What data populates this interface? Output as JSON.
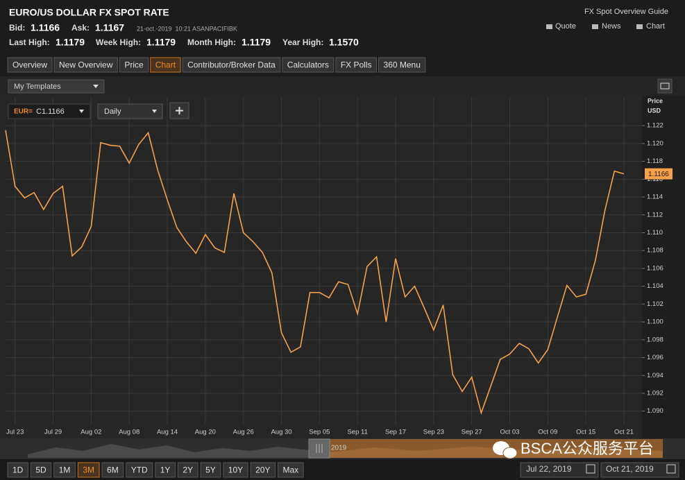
{
  "header": {
    "title": "EURO/US DOLLAR FX SPOT RATE",
    "bid_label": "Bid:",
    "bid": "1.1166",
    "ask_label": "Ask:",
    "ask": "1.1167",
    "timestamp": "21-oct.-2019  10:21 ASANPACIFIBK",
    "last_high_label": "Last High:",
    "last_high": "1.1179",
    "week_high_label": "Week High:",
    "week_high": "1.1179",
    "month_high_label": "Month High:",
    "month_high": "1.1179",
    "year_high_label": "Year High:",
    "year_high": "1.1570",
    "guide": "FX Spot Overview Guide",
    "links": [
      "Quote",
      "News",
      "Chart"
    ]
  },
  "tabs": [
    "Overview",
    "New Overview",
    "Price",
    "Chart",
    "Contributor/Broker Data",
    "Calculators",
    "FX Polls",
    "360 Menu"
  ],
  "active_tab": 3,
  "toolbar": {
    "templates": "My Templates",
    "ric": "EUR=",
    "ric_price": "C1.1166",
    "interval": "Daily"
  },
  "navigator": {
    "year": "2019"
  },
  "watermark": "BSCA公众服务平台",
  "ranges": [
    "1D",
    "5D",
    "1M",
    "3M",
    "6M",
    "YTD",
    "1Y",
    "2Y",
    "5Y",
    "10Y",
    "20Y",
    "Max"
  ],
  "active_range": 3,
  "date_from": "Jul 22, 2019",
  "date_to": "Oct 21, 2019",
  "chart_data": {
    "type": "line",
    "y_label": "Price",
    "y_unit": "USD",
    "categories": [
      null,
      "Jul 23",
      null,
      null,
      null,
      "Jul 29",
      null,
      null,
      null,
      "Aug 02",
      null,
      null,
      null,
      "Aug 08",
      null,
      null,
      null,
      "Aug 14",
      null,
      null,
      null,
      "Aug 20",
      null,
      null,
      null,
      "Aug 26",
      null,
      null,
      null,
      "Aug 30",
      null,
      null,
      null,
      "Sep 05",
      null,
      null,
      null,
      "Sep 11",
      null,
      null,
      null,
      "Sep 17",
      null,
      null,
      null,
      "Sep 23",
      null,
      null,
      null,
      "Sep 27",
      null,
      null,
      null,
      "Oct 03",
      null,
      null,
      null,
      "Oct 09",
      null,
      null,
      null,
      "Oct 15",
      null,
      null,
      null,
      "Oct 21"
    ],
    "series": [
      {
        "name": "EUR=",
        "color": "#f7a04b",
        "values": [
          1.1215,
          1.1152,
          1.1139,
          1.1145,
          1.1126,
          1.1144,
          1.1152,
          1.1074,
          1.1084,
          1.1107,
          1.1201,
          1.1198,
          1.1197,
          1.1178,
          1.1199,
          1.1212,
          1.117,
          1.1137,
          1.1106,
          1.109,
          1.1077,
          1.1098,
          1.1083,
          1.1078,
          1.1144,
          1.11,
          1.109,
          1.1078,
          1.1055,
          1.0988,
          1.0966,
          1.0972,
          1.1033,
          1.1033,
          1.1027,
          1.1045,
          1.1042,
          1.1009,
          1.1062,
          1.1073,
          1.1,
          1.1071,
          1.1028,
          1.104,
          1.1016,
          1.0991,
          1.1019,
          1.0941,
          1.0922,
          1.0938,
          1.0898,
          1.0928,
          1.0958,
          1.0964,
          1.0976,
          1.097,
          1.0954,
          1.0969,
          1.1005,
          1.1041,
          1.1028,
          1.1031,
          1.1069,
          1.1125,
          1.1169,
          1.1166
        ]
      }
    ],
    "ylim": [
      1.0885,
      1.1252
    ],
    "yticks": [
      {
        "value": 1.09,
        "label": "1.090"
      },
      {
        "value": 1.092,
        "label": "1.092"
      },
      {
        "value": 1.094,
        "label": "1.094"
      },
      {
        "value": 1.096,
        "label": "1.096"
      },
      {
        "value": 1.098,
        "label": "1.098"
      },
      {
        "value": 1.1,
        "label": "1.100"
      },
      {
        "value": 1.102,
        "label": "1.102"
      },
      {
        "value": 1.104,
        "label": "1.104"
      },
      {
        "value": 1.106,
        "label": "1.106"
      },
      {
        "value": 1.108,
        "label": "1.108"
      },
      {
        "value": 1.11,
        "label": "1.110"
      },
      {
        "value": 1.112,
        "label": "1.112"
      },
      {
        "value": 1.114,
        "label": "1.114"
      },
      {
        "value": 1.116,
        "label": "1.116"
      },
      {
        "value": 1.118,
        "label": "1.118"
      },
      {
        "value": 1.12,
        "label": "1.120"
      },
      {
        "value": 1.122,
        "label": "1.122"
      }
    ],
    "grid": true
  }
}
